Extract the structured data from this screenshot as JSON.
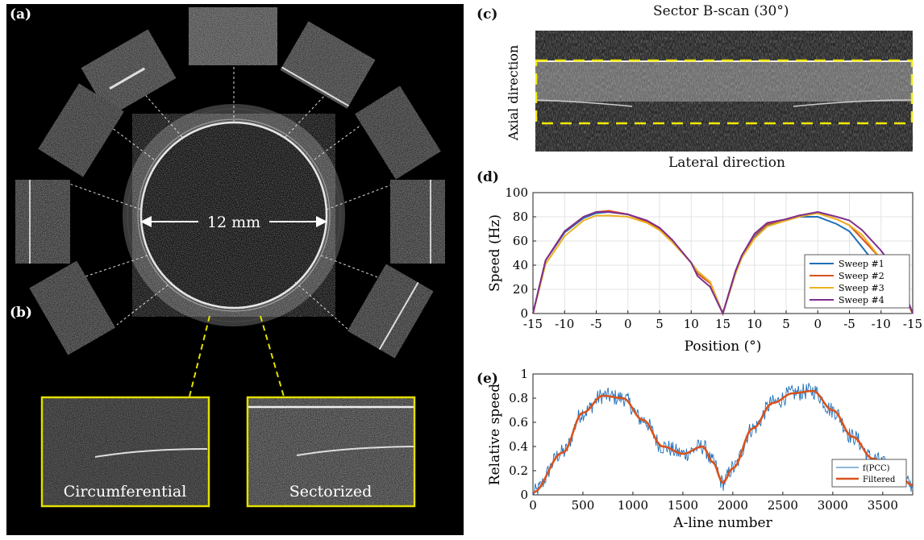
{
  "panels": {
    "a": "(a)",
    "b": "(b)",
    "c": "(c)",
    "d": "(d)",
    "e": "(e)"
  },
  "panel_a": {
    "diameter_label": "12 mm",
    "inset_left_label": "Circumferential",
    "inset_right_label": "Sectorized"
  },
  "panel_c": {
    "title": "Sector B-scan (30°)",
    "ylabel": "Axial direction",
    "xlabel": "Lateral direction"
  },
  "chart_data": [
    {
      "type": "line",
      "panel": "(d)",
      "xlabel": "Position (°)",
      "ylabel": "Speed (Hz)",
      "xticklabels": [
        "-15",
        "-10",
        "-5",
        "0",
        "5",
        "10",
        "15",
        "10",
        "5",
        "0",
        "-5",
        "-10",
        "-15"
      ],
      "ylim": [
        0,
        100
      ],
      "yticks": [
        0,
        20,
        40,
        60,
        80,
        100
      ],
      "grid": true,
      "legend_position": "bottom-right",
      "colors": [
        "#1f6fb8",
        "#d9531e",
        "#edb120",
        "#7e2f8e"
      ],
      "x": [
        -15,
        -13,
        -10,
        -7,
        -5,
        -3,
        0,
        3,
        5,
        7,
        10,
        11,
        13,
        15,
        17,
        18,
        20,
        22,
        25,
        27,
        30,
        33,
        35,
        37,
        40,
        42,
        43,
        45
      ],
      "series": [
        {
          "name": "Sweep #1",
          "values": [
            0,
            44,
            67,
            79,
            83,
            84,
            82,
            76,
            70,
            60,
            42,
            35,
            26,
            0,
            33,
            47,
            63,
            73,
            77,
            80,
            80,
            74,
            68,
            55,
            35,
            20,
            19,
            0
          ]
        },
        {
          "name": "Sweep #2",
          "values": [
            0,
            44,
            68,
            80,
            84,
            85,
            82,
            76,
            70,
            60,
            42,
            33,
            25,
            0,
            35,
            48,
            65,
            74,
            78,
            81,
            83,
            78,
            73,
            62,
            45,
            30,
            20,
            0
          ]
        },
        {
          "name": "Sweep #3",
          "values": [
            0,
            41,
            64,
            77,
            81,
            81,
            80,
            75,
            69,
            59,
            42,
            35,
            26,
            0,
            33,
            46,
            62,
            72,
            77,
            80,
            83,
            78,
            73,
            65,
            45,
            33,
            20,
            0
          ]
        },
        {
          "name": "Sweep #4",
          "values": [
            0,
            44,
            68,
            80,
            84,
            84,
            82,
            77,
            71,
            61,
            42,
            31,
            22,
            0,
            35,
            48,
            66,
            75,
            78,
            81,
            84,
            80,
            77,
            69,
            52,
            38,
            28,
            0
          ]
        }
      ]
    },
    {
      "type": "line",
      "panel": "(e)",
      "xlabel": "A-line number",
      "ylabel": "Relative speed",
      "xlim": [
        0,
        3800
      ],
      "xticks": [
        0,
        500,
        1000,
        1500,
        2000,
        2500,
        3000,
        3500
      ],
      "ylim": [
        0,
        1
      ],
      "yticks": [
        0,
        0.2,
        0.4,
        0.6,
        0.8,
        1
      ],
      "yticklabels": [
        "0",
        "0.2",
        "0.4",
        "0.6",
        "0.8",
        "1"
      ],
      "grid": false,
      "legend_position": "bottom-right",
      "colors": [
        "#1f6fb8",
        "#d9531e"
      ],
      "series": [
        {
          "name": "f(PCC)",
          "x": [
            0,
            300,
            500,
            700,
            900,
            1100,
            1300,
            1500,
            1700,
            1800,
            1900,
            2000,
            2200,
            2400,
            2600,
            2800,
            3000,
            3200,
            3400,
            3600,
            3800
          ],
          "values": [
            0.02,
            0.35,
            0.68,
            0.82,
            0.8,
            0.62,
            0.4,
            0.34,
            0.4,
            0.27,
            0.1,
            0.22,
            0.55,
            0.76,
            0.84,
            0.86,
            0.7,
            0.48,
            0.3,
            0.22,
            0.08
          ],
          "noise_amplitude": 0.05
        },
        {
          "name": "Filtered",
          "x": [
            0,
            300,
            500,
            700,
            900,
            1100,
            1300,
            1500,
            1700,
            1800,
            1900,
            2000,
            2200,
            2400,
            2600,
            2800,
            3000,
            3200,
            3400,
            3600,
            3800
          ],
          "values": [
            0.02,
            0.35,
            0.68,
            0.82,
            0.8,
            0.62,
            0.4,
            0.34,
            0.4,
            0.27,
            0.1,
            0.22,
            0.55,
            0.76,
            0.84,
            0.86,
            0.7,
            0.48,
            0.3,
            0.22,
            0.08
          ]
        }
      ]
    }
  ]
}
